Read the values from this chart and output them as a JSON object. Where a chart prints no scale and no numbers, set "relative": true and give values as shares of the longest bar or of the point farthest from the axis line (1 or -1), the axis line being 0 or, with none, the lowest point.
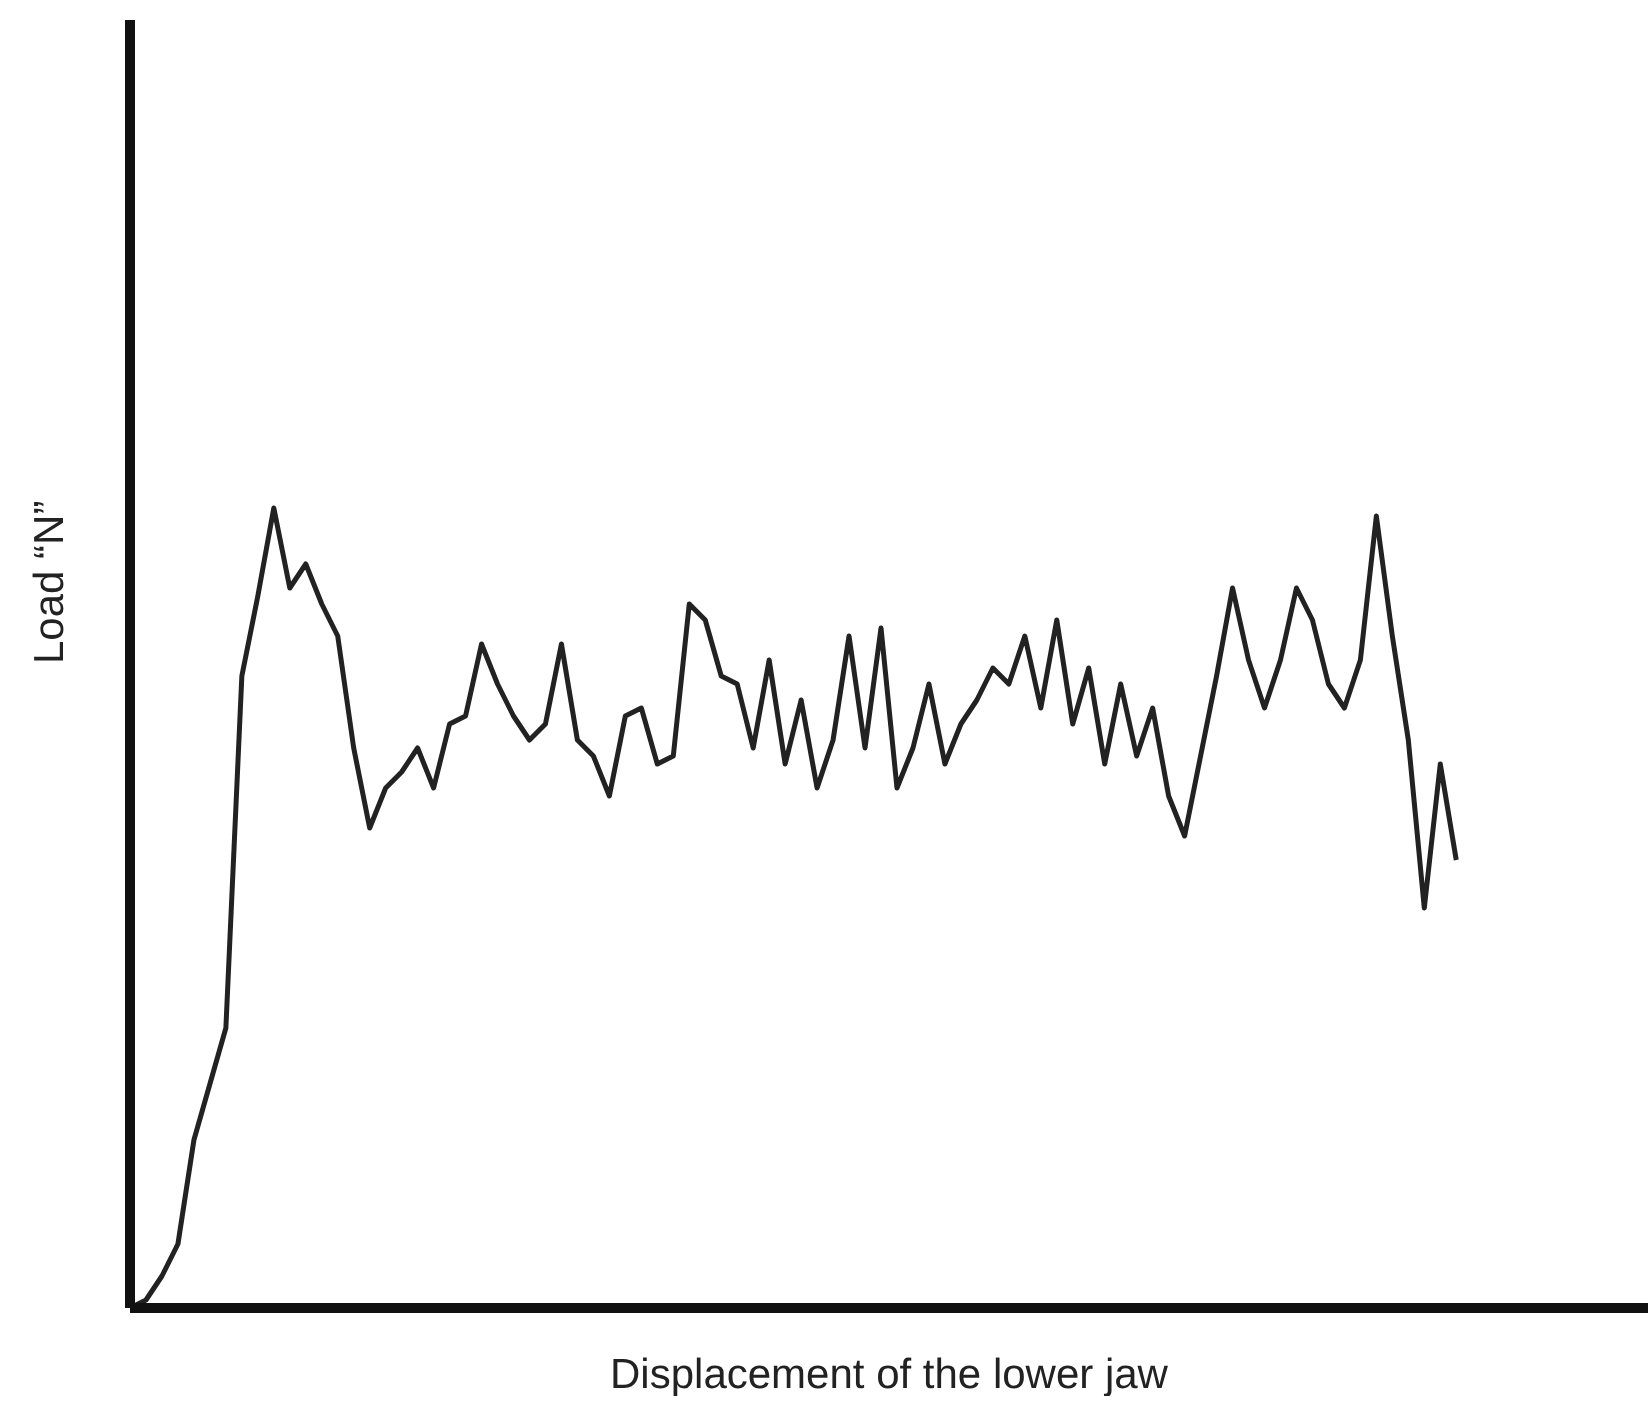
{
  "chart_data": {
    "type": "line",
    "relative": true,
    "xlabel": "Displacement of the lower jaw",
    "ylabel": "Load  “N”",
    "color": "#222222",
    "categories": [
      null,
      null,
      null,
      null,
      null,
      null,
      null,
      null,
      null,
      null,
      null,
      null,
      null,
      null,
      null,
      null,
      null,
      null,
      null,
      null,
      null,
      null,
      null,
      null,
      null,
      null,
      null,
      null,
      null,
      null,
      null,
      null,
      null,
      null,
      null,
      null,
      null,
      null,
      null,
      null,
      null,
      null,
      null,
      null,
      null,
      null,
      null,
      null,
      null,
      null,
      null,
      null,
      null,
      null,
      null,
      null,
      null,
      null,
      null,
      null,
      null,
      null,
      null,
      null,
      null,
      null,
      null,
      null,
      null,
      null,
      null,
      null,
      null,
      null,
      null,
      null,
      null,
      null,
      null,
      null,
      null,
      null,
      null,
      null,
      null,
      null,
      null,
      null,
      null,
      null,
      null,
      null,
      null,
      null,
      null,
      null
    ],
    "values": [
      0,
      0.01,
      0.04,
      0.08,
      0.21,
      0.28,
      0.35,
      0.79,
      0.89,
      1,
      0.9,
      0.93,
      0.88,
      0.84,
      0.7,
      0.6,
      0.65,
      0.67,
      0.7,
      0.65,
      0.73,
      0.74,
      0.83,
      0.78,
      0.74,
      0.71,
      0.73,
      0.83,
      0.71,
      0.69,
      0.64,
      0.74,
      0.75,
      0.68,
      0.69,
      0.88,
      0.86,
      0.79,
      0.78,
      0.7,
      0.81,
      0.68,
      0.76,
      0.65,
      0.71,
      0.84,
      0.7,
      0.85,
      0.65,
      0.7,
      0.78,
      0.68,
      0.73,
      0.76,
      0.8,
      0.78,
      0.84,
      0.75,
      0.86,
      0.73,
      0.8,
      0.68,
      0.78,
      0.69,
      0.75,
      0.64,
      0.59,
      0.69,
      0.79,
      0.9,
      0.81,
      0.75,
      0.81,
      0.9,
      0.86,
      0.78,
      0.75,
      0.81,
      0.99,
      0.84,
      0.71,
      0.5,
      0.68,
      0.56,
      null,
      null,
      null,
      null,
      null,
      null,
      null,
      null,
      null,
      null,
      null,
      null
    ],
    "grid": false,
    "legend": false,
    "marker": "none",
    "line_style": "solid"
  }
}
